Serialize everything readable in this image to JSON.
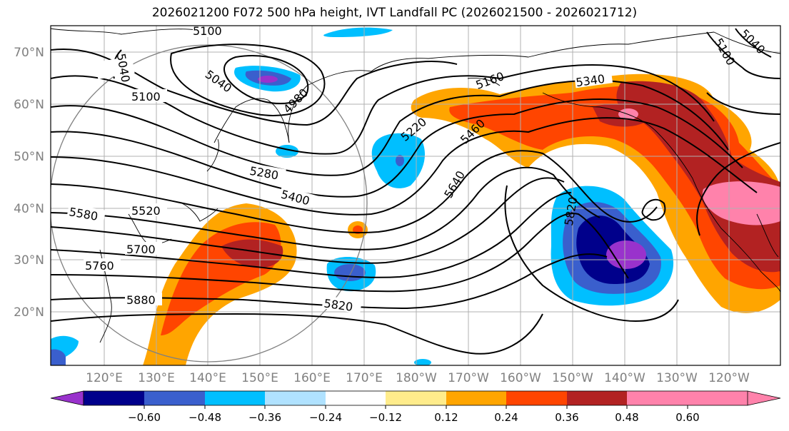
{
  "title": "2026021200 F072 500 hPa height, IVT Landfall PC (2026021500 - 2026021712)",
  "lon_labels": [
    "120°E",
    "130°E",
    "140°E",
    "150°E",
    "160°E",
    "170°E",
    "180°W",
    "170°W",
    "160°W",
    "150°W",
    "140°W",
    "130°W",
    "120°W"
  ],
  "lat_labels": [
    "70°N",
    "60°N",
    "50°N",
    "40°N",
    "30°N",
    "20°N"
  ],
  "colorbar": {
    "colors": [
      "#9932CC",
      "#00008B",
      "#3A5FCD",
      "#00BFFF",
      "#B0E2FF",
      "#FFFFFF",
      "#FFEC8B",
      "#FFA500",
      "#FF4500",
      "#B22222",
      "#FF82AB"
    ],
    "ticks": [
      "−0.60",
      "−0.48",
      "−0.36",
      "−0.24",
      "−0.12",
      "0.12",
      "0.24",
      "0.36",
      "0.48",
      "0.60"
    ]
  },
  "contour_labels": [
    {
      "text": "5100"
    },
    {
      "text": "5040"
    },
    {
      "text": "5040"
    },
    {
      "text": "4980"
    },
    {
      "text": "5100"
    },
    {
      "text": "5160"
    },
    {
      "text": "5220"
    },
    {
      "text": "5340"
    },
    {
      "text": "5100"
    },
    {
      "text": "5040"
    },
    {
      "text": "5460"
    },
    {
      "text": "5280"
    },
    {
      "text": "5400"
    },
    {
      "text": "5640"
    },
    {
      "text": "5580"
    },
    {
      "text": "5520"
    },
    {
      "text": "5820"
    },
    {
      "text": "5700"
    },
    {
      "text": "5760"
    },
    {
      "text": "5880"
    },
    {
      "text": "5820"
    }
  ]
}
